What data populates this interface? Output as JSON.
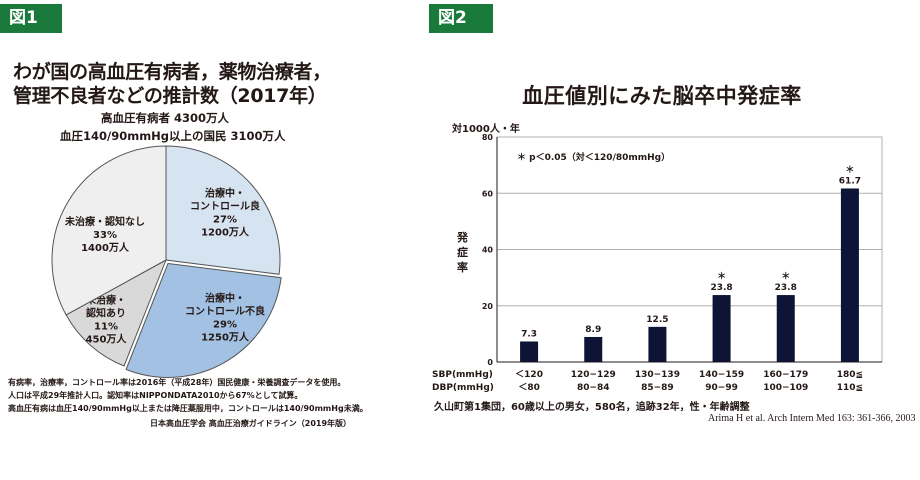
{
  "fig1": {
    "tag": "図1",
    "title_line1": "わが国の高血圧有病者，薬物治療者，",
    "title_line2": "管理不良者などの推計数（2017年）",
    "subtitle_line1": "高血圧有病者 4300万人",
    "subtitle_line2": "血圧140/90mmHg以上の国民 3100万人",
    "notes": [
      "有病率，治療率，コントロール率は2016年（平成28年）国民健康・栄養調査データを使用。",
      "人口は平成29年推計人口。認知率はNIPPONDATA2010から67%として試算。",
      "高血圧有病は血圧140/90mmHg以上または降圧薬服用中，コントロールは140/90mmHg未満。"
    ],
    "source": "日本高血圧学会 高血圧治療ガイドライン（2019年版）"
  },
  "fig2": {
    "tag": "図2",
    "title": "血圧値別にみた脳卒中発症率",
    "ylabel_top": "対1000人・年",
    "ylabel": "発症率",
    "caption": "久山町第1集団，60歳以上の男女，580名，追跡32年，性・年齢調整",
    "citation": "Arima H et al. Arch Intern Med 163: 361-366, 2003"
  },
  "colors": {
    "tag_green": "#1a7a3c",
    "slice_good": "#d6e3f1",
    "slice_poor": "#a3c2e3",
    "slice_aware": "#d9d9d9",
    "slice_unaware": "#efefef",
    "bar": "#0d1436"
  },
  "chart_data": [
    {
      "type": "pie",
      "labels": [
        [
          "治療中・",
          "コントロール良",
          "27%",
          "1200万人"
        ],
        [
          "治療中・",
          "コントロール不良",
          "29%",
          "1250万人"
        ],
        [
          "未治療・",
          "認知あり",
          "11%",
          "450万人"
        ],
        [
          "未治療・認知なし",
          "33%",
          "1400万人"
        ]
      ],
      "values": [
        27,
        29,
        11,
        33
      ],
      "counts": [
        1200,
        1250,
        450,
        1400
      ],
      "colors": [
        "#d6e3f1",
        "#a3c2e3",
        "#d9d9d9",
        "#efefef"
      ]
    },
    {
      "type": "bar",
      "categories_sbp": [
        "＜120",
        "120−129",
        "130−139",
        "140−159",
        "160−179",
        "180≦"
      ],
      "categories_dbp": [
        "＜80",
        "80−84",
        "85−89",
        "90−99",
        "100−109",
        "110≦"
      ],
      "row_label_sbp": "SBP(mmHg)",
      "row_label_dbp": "DBP(mmHg)",
      "values": [
        7.3,
        8.9,
        12.5,
        23.8,
        23.8,
        61.7
      ],
      "significant": [
        false,
        false,
        false,
        true,
        true,
        true
      ],
      "significance_marker": "＊",
      "legend_note": "＊ p＜0.05（対＜120/80mmHg）",
      "yticks": [
        0,
        20,
        40,
        60,
        80
      ],
      "ylim": [
        0,
        80
      ],
      "grid": true
    }
  ]
}
